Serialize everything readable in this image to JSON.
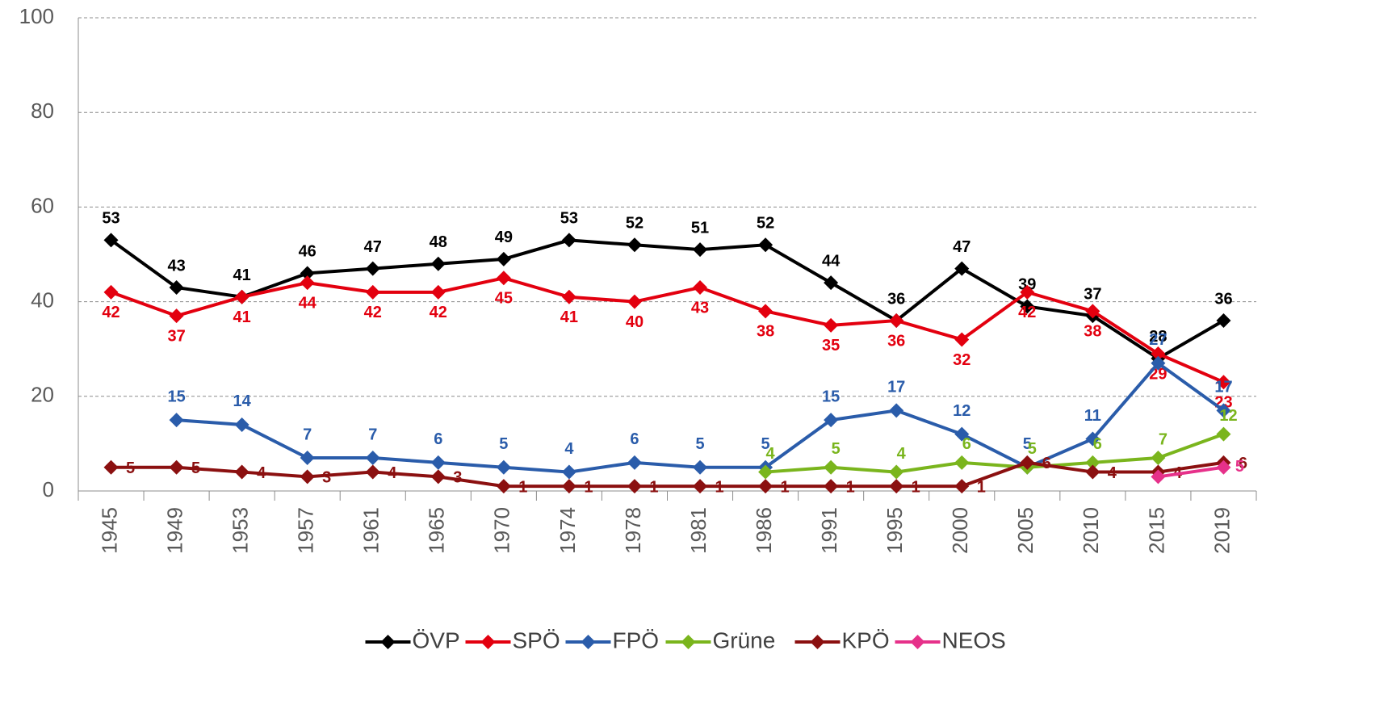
{
  "chart_data": {
    "type": "line",
    "categories": [
      "1945",
      "1949",
      "1953",
      "1957",
      "1961",
      "1965",
      "1970",
      "1974",
      "1978",
      "1981",
      "1986",
      "1991",
      "1995",
      "2000",
      "2005",
      "2010",
      "2015",
      "2019"
    ],
    "ylim": [
      0,
      100
    ],
    "yticks": [
      0,
      20,
      40,
      60,
      80,
      100
    ],
    "grid": true,
    "legend": "bottom",
    "series": [
      {
        "name": "ÖVP",
        "color": "#000000",
        "values": [
          53,
          43,
          41,
          46,
          47,
          48,
          49,
          53,
          52,
          51,
          52,
          44,
          36,
          47,
          39,
          37,
          28,
          36
        ]
      },
      {
        "name": "SPÖ",
        "color": "#e3000f",
        "values": [
          42,
          37,
          41,
          44,
          42,
          42,
          45,
          41,
          40,
          43,
          38,
          35,
          36,
          32,
          42,
          38,
          29,
          23
        ]
      },
      {
        "name": "FPÖ",
        "color": "#2a5caa",
        "values": [
          null,
          15,
          14,
          7,
          7,
          6,
          5,
          4,
          6,
          5,
          5,
          15,
          17,
          12,
          5,
          11,
          27,
          17
        ]
      },
      {
        "name": "Grüne",
        "color": "#7ab51d",
        "values": [
          null,
          null,
          null,
          null,
          null,
          null,
          null,
          null,
          null,
          null,
          4,
          5,
          4,
          6,
          5,
          6,
          7,
          12
        ]
      },
      {
        "name": "KPÖ",
        "color": "#8b1010",
        "values": [
          5,
          5,
          4,
          3,
          4,
          3,
          1,
          1,
          1,
          1,
          1,
          1,
          1,
          1,
          6,
          4,
          4,
          6
        ]
      },
      {
        "name": "NEOS",
        "color": "#e6318a",
        "values": [
          null,
          null,
          null,
          null,
          null,
          null,
          null,
          null,
          null,
          null,
          null,
          null,
          null,
          null,
          null,
          null,
          3,
          5
        ],
        "value_labels": [
          null,
          null,
          null,
          null,
          null,
          null,
          null,
          null,
          null,
          null,
          null,
          null,
          null,
          null,
          null,
          null,
          null,
          "5"
        ]
      }
    ]
  }
}
